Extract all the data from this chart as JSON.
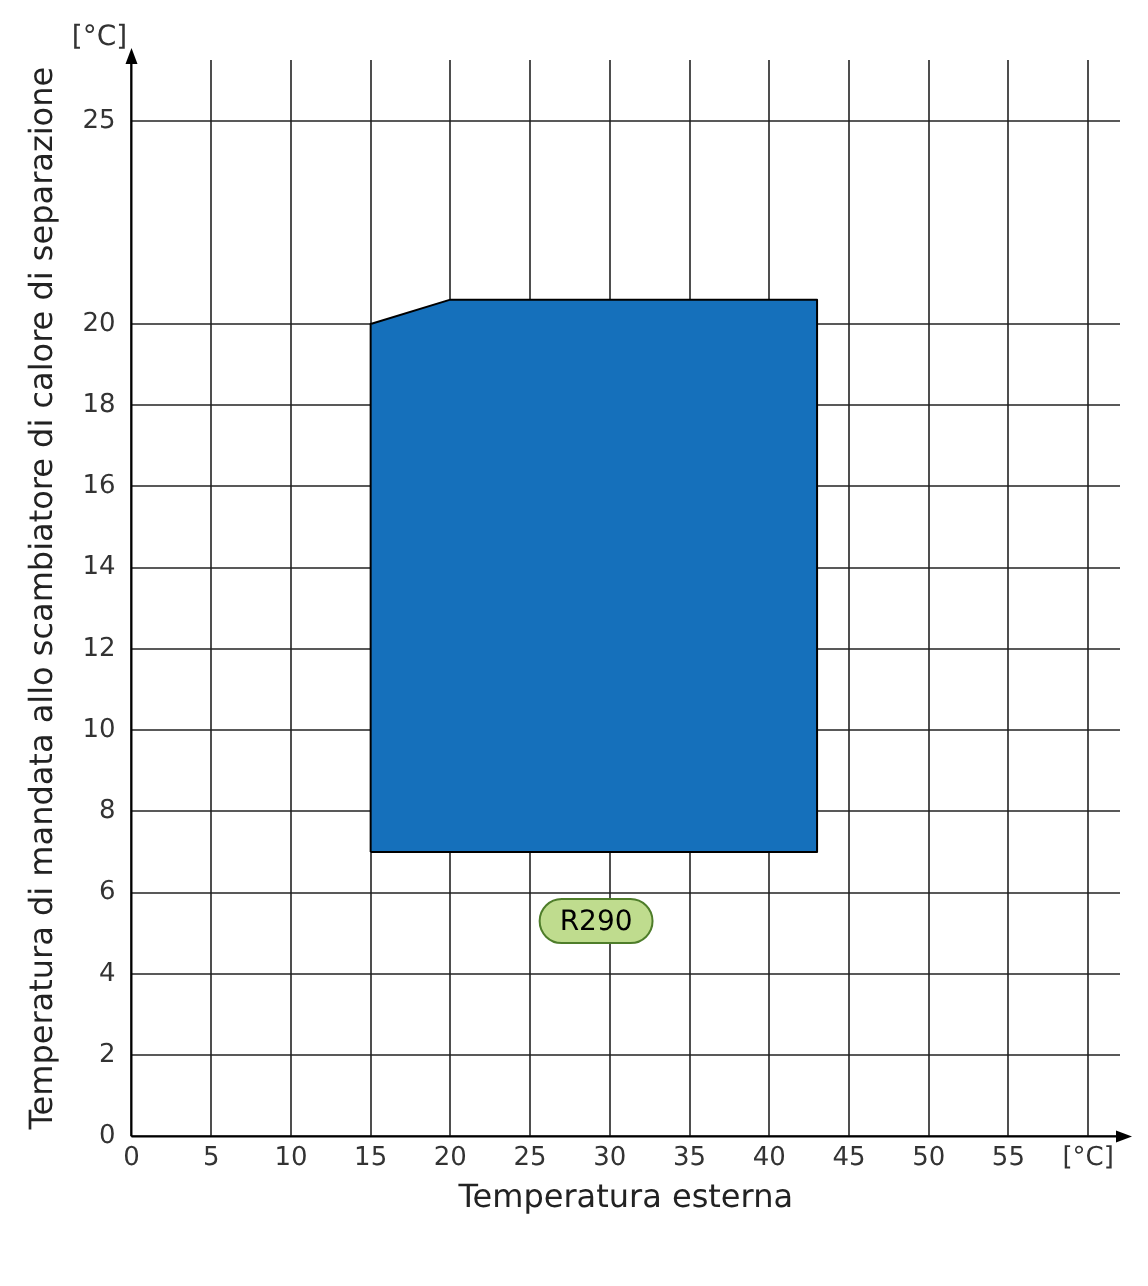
{
  "chart_data": {
    "type": "area",
    "xlabel": "Temperatura esterna",
    "ylabel": "Temperatura di mandata allo scambiatore di calore di separazione",
    "x": [
      15,
      15,
      20,
      43,
      43,
      15
    ],
    "series": [
      {
        "color": "#1570bb",
        "values": [
          7,
          20,
          20.6,
          20.6,
          7,
          7
        ]
      }
    ],
    "xlim": [
      0,
      62
    ],
    "xticks": [
      0,
      5,
      10,
      15,
      20,
      25,
      30,
      35,
      40,
      45,
      50,
      55,
      {
        "value": 60,
        "label": "[°C]"
      }
    ],
    "ylim": [
      0,
      26.5
    ],
    "yticks": [
      0,
      2,
      4,
      6,
      8,
      10,
      12,
      14,
      16,
      18,
      20,
      25
    ],
    "annotations": [
      "[°C]",
      "R290"
    ],
    "grid": true,
    "legend": false
  }
}
